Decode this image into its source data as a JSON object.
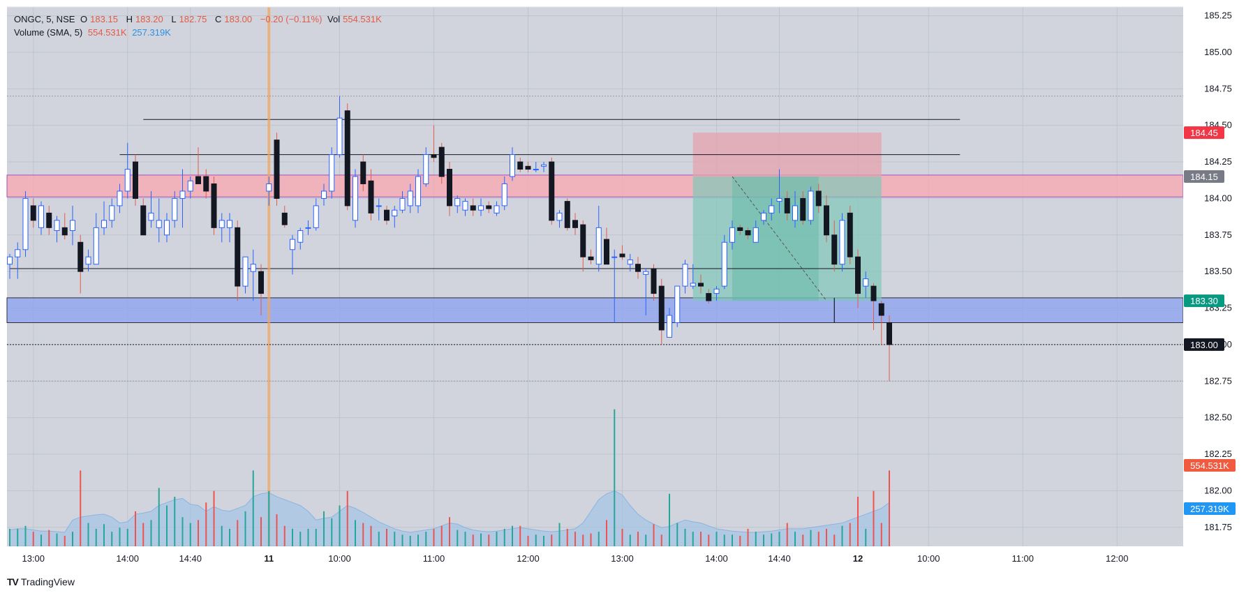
{
  "header": {
    "symbol": "ONGC, 5, NSE",
    "open_label": "O",
    "open": "183.15",
    "high_label": "H",
    "high": "183.20",
    "low_label": "L",
    "low": "182.75",
    "close_label": "C",
    "close": "183.00",
    "change": "−0.20 (−0.11%)",
    "vol_label": "Vol",
    "vol": "554.531K",
    "volume_label": "Volume (SMA, 5)",
    "volume_value": "554.531K",
    "volume_sma": "257.319K"
  },
  "brand": {
    "name": "TradingView",
    "logo": "TV"
  },
  "colors": {
    "bg": "#d1d4dc",
    "up_border": "#2962ff",
    "down_body": "#131722",
    "wick_red": "#e25b47",
    "vol_up": "#26a69a",
    "vol_down": "#ef5350",
    "resistance_zone": "#f7a9b3",
    "support_zone": "#90a4f0",
    "tp_zone": "#7fc7b8",
    "sl_zone": "#e6a3ad",
    "sma_fill": "#9cc1e8"
  },
  "chart_data": {
    "type": "candlestick",
    "symbol": "ONGC",
    "interval": "5",
    "exchange": "NSE",
    "y_axis": {
      "ticks": [
        "185.25",
        "185.00",
        "184.75",
        "184.50",
        "184.25",
        "184.00",
        "183.75",
        "183.50",
        "183.25",
        "183.00",
        "182.75",
        "182.50",
        "182.25",
        "182.00",
        "181.75"
      ],
      "ylim": [
        181.62,
        185.31
      ]
    },
    "x_axis": {
      "ticks": [
        {
          "label": "13:00",
          "i": 3
        },
        {
          "label": "14:00",
          "i": 15
        },
        {
          "label": "14:40",
          "i": 23
        },
        {
          "label": "11",
          "i": 33,
          "bold": true
        },
        {
          "label": "10:00",
          "i": 42
        },
        {
          "label": "11:00",
          "i": 54
        },
        {
          "label": "12:00",
          "i": 66
        },
        {
          "label": "13:00",
          "i": 78
        },
        {
          "label": "14:00",
          "i": 90
        },
        {
          "label": "14:40",
          "i": 98
        },
        {
          "label": "12",
          "i": 108,
          "bold": true
        },
        {
          "label": "10:00",
          "i": 117
        },
        {
          "label": "11:00",
          "i": 129
        },
        {
          "label": "12:00",
          "i": 141
        }
      ]
    },
    "candles": [
      {
        "o": 183.55,
        "h": 183.62,
        "l": 183.45,
        "c": 183.6
      },
      {
        "o": 183.6,
        "h": 183.7,
        "l": 183.45,
        "c": 183.65
      },
      {
        "o": 183.65,
        "h": 184.05,
        "l": 183.6,
        "c": 184.0
      },
      {
        "o": 183.95,
        "h": 184.0,
        "l": 183.8,
        "c": 183.85
      },
      {
        "o": 183.8,
        "h": 183.98,
        "l": 183.75,
        "c": 183.95
      },
      {
        "o": 183.9,
        "h": 183.95,
        "l": 183.75,
        "c": 183.8
      },
      {
        "o": 183.78,
        "h": 183.88,
        "l": 183.7,
        "c": 183.85
      },
      {
        "o": 183.8,
        "h": 183.9,
        "l": 183.72,
        "c": 183.75
      },
      {
        "o": 183.78,
        "h": 183.95,
        "l": 183.68,
        "c": 183.85
      },
      {
        "o": 183.7,
        "h": 183.75,
        "l": 183.35,
        "c": 183.5
      },
      {
        "o": 183.55,
        "h": 183.65,
        "l": 183.5,
        "c": 183.6
      },
      {
        "o": 183.55,
        "h": 183.9,
        "l": 183.55,
        "c": 183.8
      },
      {
        "o": 183.8,
        "h": 183.98,
        "l": 183.75,
        "c": 183.85
      },
      {
        "o": 183.85,
        "h": 184.0,
        "l": 183.8,
        "c": 183.95
      },
      {
        "o": 183.95,
        "h": 184.1,
        "l": 183.9,
        "c": 184.05
      },
      {
        "o": 184.05,
        "h": 184.38,
        "l": 184.0,
        "c": 184.2
      },
      {
        "o": 184.25,
        "h": 184.3,
        "l": 183.95,
        "c": 184.0
      },
      {
        "o": 183.95,
        "h": 184.0,
        "l": 183.75,
        "c": 183.75
      },
      {
        "o": 183.85,
        "h": 184.05,
        "l": 183.8,
        "c": 183.9
      },
      {
        "o": 183.8,
        "h": 184.0,
        "l": 183.7,
        "c": 183.85
      },
      {
        "o": 183.75,
        "h": 183.9,
        "l": 183.7,
        "c": 183.85
      },
      {
        "o": 183.85,
        "h": 184.05,
        "l": 183.8,
        "c": 184.0
      },
      {
        "o": 184.0,
        "h": 184.2,
        "l": 183.8,
        "c": 184.05
      },
      {
        "o": 184.05,
        "h": 184.15,
        "l": 184.0,
        "c": 184.12
      },
      {
        "o": 184.15,
        "h": 184.35,
        "l": 184.1,
        "c": 184.1
      },
      {
        "o": 184.15,
        "h": 184.2,
        "l": 184.0,
        "c": 184.05
      },
      {
        "o": 184.1,
        "h": 184.15,
        "l": 183.75,
        "c": 183.8
      },
      {
        "o": 183.8,
        "h": 183.9,
        "l": 183.7,
        "c": 183.85
      },
      {
        "o": 183.8,
        "h": 183.9,
        "l": 183.7,
        "c": 183.85
      },
      {
        "o": 183.8,
        "h": 183.85,
        "l": 183.3,
        "c": 183.4
      },
      {
        "o": 183.4,
        "h": 183.6,
        "l": 183.35,
        "c": 183.6
      },
      {
        "o": 183.5,
        "h": 183.65,
        "l": 183.3,
        "c": 183.55
      },
      {
        "o": 183.5,
        "h": 183.55,
        "l": 183.2,
        "c": 183.35
      },
      {
        "o": 184.05,
        "h": 184.15,
        "l": 183.95,
        "c": 184.1
      },
      {
        "o": 184.4,
        "h": 184.45,
        "l": 183.95,
        "c": 184.0
      },
      {
        "o": 183.9,
        "h": 183.95,
        "l": 183.8,
        "c": 183.82
      },
      {
        "o": 183.65,
        "h": 183.75,
        "l": 183.48,
        "c": 183.72
      },
      {
        "o": 183.7,
        "h": 183.8,
        "l": 183.65,
        "c": 183.78
      },
      {
        "o": 183.8,
        "h": 183.85,
        "l": 183.75,
        "c": 183.8
      },
      {
        "o": 183.8,
        "h": 184.0,
        "l": 183.78,
        "c": 183.95
      },
      {
        "o": 184.0,
        "h": 184.1,
        "l": 183.95,
        "c": 184.05
      },
      {
        "o": 184.05,
        "h": 184.35,
        "l": 184.0,
        "c": 184.3
      },
      {
        "o": 184.3,
        "h": 184.7,
        "l": 184.28,
        "c": 184.55
      },
      {
        "o": 184.6,
        "h": 184.65,
        "l": 183.92,
        "c": 183.95
      },
      {
        "o": 183.85,
        "h": 184.2,
        "l": 183.8,
        "c": 184.15
      },
      {
        "o": 184.25,
        "h": 184.3,
        "l": 184.05,
        "c": 184.1
      },
      {
        "o": 184.12,
        "h": 184.2,
        "l": 183.85,
        "c": 183.9
      },
      {
        "o": 183.95,
        "h": 184.0,
        "l": 183.85,
        "c": 183.95
      },
      {
        "o": 183.92,
        "h": 183.95,
        "l": 183.82,
        "c": 183.85
      },
      {
        "o": 183.88,
        "h": 183.95,
        "l": 183.8,
        "c": 183.92
      },
      {
        "o": 183.92,
        "h": 184.05,
        "l": 183.9,
        "c": 184.0
      },
      {
        "o": 183.95,
        "h": 184.1,
        "l": 183.9,
        "c": 184.05
      },
      {
        "o": 183.95,
        "h": 184.2,
        "l": 183.9,
        "c": 184.15
      },
      {
        "o": 184.1,
        "h": 184.35,
        "l": 184.08,
        "c": 184.3
      },
      {
        "o": 184.3,
        "h": 184.5,
        "l": 184.25,
        "c": 184.28
      },
      {
        "o": 184.35,
        "h": 184.38,
        "l": 184.1,
        "c": 184.15
      },
      {
        "o": 184.2,
        "h": 184.25,
        "l": 183.88,
        "c": 183.95
      },
      {
        "o": 183.95,
        "h": 184.02,
        "l": 183.9,
        "c": 184.0
      },
      {
        "o": 183.92,
        "h": 184.0,
        "l": 183.88,
        "c": 183.98
      },
      {
        "o": 183.95,
        "h": 184.0,
        "l": 183.88,
        "c": 183.92
      },
      {
        "o": 183.92,
        "h": 184.0,
        "l": 183.88,
        "c": 183.95
      },
      {
        "o": 183.95,
        "h": 183.98,
        "l": 183.9,
        "c": 183.93
      },
      {
        "o": 183.9,
        "h": 183.98,
        "l": 183.88,
        "c": 183.95
      },
      {
        "o": 183.95,
        "h": 184.15,
        "l": 183.92,
        "c": 184.1
      },
      {
        "o": 184.15,
        "h": 184.35,
        "l": 184.12,
        "c": 184.3
      },
      {
        "o": 184.25,
        "h": 184.28,
        "l": 184.18,
        "c": 184.2
      },
      {
        "o": 184.22,
        "h": 184.25,
        "l": 184.18,
        "c": 184.2
      },
      {
        "o": 184.2,
        "h": 184.25,
        "l": 184.18,
        "c": 184.2
      },
      {
        "o": 184.22,
        "h": 184.25,
        "l": 184.18,
        "c": 184.23
      },
      {
        "o": 184.25,
        "h": 184.28,
        "l": 183.82,
        "c": 183.85
      },
      {
        "o": 183.85,
        "h": 183.92,
        "l": 183.8,
        "c": 183.9
      },
      {
        "o": 183.98,
        "h": 184.0,
        "l": 183.78,
        "c": 183.8
      },
      {
        "o": 183.85,
        "h": 183.9,
        "l": 183.75,
        "c": 183.8
      },
      {
        "o": 183.82,
        "h": 183.85,
        "l": 183.5,
        "c": 183.6
      },
      {
        "o": 183.6,
        "h": 183.65,
        "l": 183.55,
        "c": 183.58
      },
      {
        "o": 183.55,
        "h": 183.95,
        "l": 183.5,
        "c": 183.8
      },
      {
        "o": 183.72,
        "h": 183.8,
        "l": 183.55,
        "c": 183.55
      },
      {
        "o": 183.6,
        "h": 183.65,
        "l": 183.15,
        "c": 183.6
      },
      {
        "o": 183.62,
        "h": 183.68,
        "l": 183.58,
        "c": 183.6
      },
      {
        "o": 183.55,
        "h": 183.62,
        "l": 183.5,
        "c": 183.58
      },
      {
        "o": 183.55,
        "h": 183.6,
        "l": 183.45,
        "c": 183.5
      },
      {
        "o": 183.48,
        "h": 183.52,
        "l": 183.2,
        "c": 183.5
      },
      {
        "o": 183.52,
        "h": 183.55,
        "l": 183.3,
        "c": 183.35
      },
      {
        "o": 183.4,
        "h": 183.45,
        "l": 183.0,
        "c": 183.1
      },
      {
        "o": 183.05,
        "h": 183.25,
        "l": 183.05,
        "c": 183.2
      },
      {
        "o": 183.15,
        "h": 183.4,
        "l": 183.12,
        "c": 183.4
      },
      {
        "o": 183.4,
        "h": 183.58,
        "l": 183.35,
        "c": 183.55
      },
      {
        "o": 183.4,
        "h": 183.55,
        "l": 183.38,
        "c": 183.42
      },
      {
        "o": 183.42,
        "h": 183.48,
        "l": 183.35,
        "c": 183.4
      },
      {
        "o": 183.35,
        "h": 183.38,
        "l": 183.28,
        "c": 183.3
      },
      {
        "o": 183.35,
        "h": 183.4,
        "l": 183.3,
        "c": 183.38
      },
      {
        "o": 183.4,
        "h": 183.75,
        "l": 183.38,
        "c": 183.7
      },
      {
        "o": 183.7,
        "h": 183.85,
        "l": 183.65,
        "c": 183.8
      },
      {
        "o": 183.8,
        "h": 183.82,
        "l": 183.75,
        "c": 183.78
      },
      {
        "o": 183.78,
        "h": 183.8,
        "l": 183.72,
        "c": 183.75
      },
      {
        "o": 183.7,
        "h": 183.85,
        "l": 183.7,
        "c": 183.8
      },
      {
        "o": 183.85,
        "h": 183.92,
        "l": 183.82,
        "c": 183.9
      },
      {
        "o": 183.9,
        "h": 184.0,
        "l": 183.85,
        "c": 183.95
      },
      {
        "o": 183.98,
        "h": 184.2,
        "l": 183.9,
        "c": 184.0
      },
      {
        "o": 184.0,
        "h": 184.05,
        "l": 183.85,
        "c": 183.9
      },
      {
        "o": 183.85,
        "h": 184.05,
        "l": 183.8,
        "c": 183.95
      },
      {
        "o": 184.0,
        "h": 184.05,
        "l": 183.82,
        "c": 183.85
      },
      {
        "o": 183.85,
        "h": 184.08,
        "l": 183.82,
        "c": 184.05
      },
      {
        "o": 184.05,
        "h": 184.1,
        "l": 183.9,
        "c": 183.95
      },
      {
        "o": 183.95,
        "h": 184.02,
        "l": 183.7,
        "c": 183.75
      },
      {
        "o": 183.75,
        "h": 183.85,
        "l": 183.5,
        "c": 183.55
      },
      {
        "o": 183.55,
        "h": 183.9,
        "l": 183.5,
        "c": 183.85
      },
      {
        "o": 183.9,
        "h": 183.95,
        "l": 183.55,
        "c": 183.6
      },
      {
        "o": 183.6,
        "h": 183.65,
        "l": 183.25,
        "c": 183.35
      },
      {
        "o": 183.4,
        "h": 183.5,
        "l": 183.32,
        "c": 183.45
      },
      {
        "o": 183.4,
        "h": 183.42,
        "l": 183.1,
        "c": 183.3
      },
      {
        "o": 183.28,
        "h": 183.3,
        "l": 183.0,
        "c": 183.2
      },
      {
        "o": 183.15,
        "h": 183.2,
        "l": 182.75,
        "c": 183.0
      }
    ],
    "volume": [
      30,
      30,
      35,
      25,
      20,
      28,
      22,
      18,
      25,
      130,
      40,
      30,
      38,
      25,
      32,
      30,
      60,
      40,
      45,
      100,
      70,
      85,
      50,
      40,
      45,
      75,
      95,
      35,
      30,
      45,
      60,
      130,
      50,
      95,
      55,
      35,
      30,
      25,
      30,
      30,
      60,
      48,
      70,
      95,
      45,
      40,
      35,
      25,
      30,
      25,
      20,
      18,
      20,
      25,
      30,
      35,
      50,
      28,
      25,
      20,
      22,
      20,
      25,
      30,
      35,
      35,
      18,
      20,
      18,
      20,
      40,
      30,
      25,
      20,
      22,
      25,
      45,
      235,
      30,
      20,
      25,
      20,
      38,
      20,
      90,
      40,
      30,
      25,
      25,
      20,
      25,
      20,
      20,
      18,
      30,
      25,
      20,
      22,
      25,
      40,
      25,
      20,
      28,
      25,
      30,
      20,
      35,
      40,
      85,
      30,
      95,
      40,
      130
    ],
    "sma_volume": [
      28,
      30,
      30,
      28,
      26,
      26,
      25,
      24,
      45,
      50,
      52,
      54,
      55,
      50,
      40,
      42,
      55,
      57,
      60,
      70,
      75,
      80,
      82,
      72,
      70,
      60,
      68,
      62,
      60,
      65,
      70,
      85,
      90,
      92,
      85,
      80,
      75,
      70,
      60,
      45,
      48,
      50,
      60,
      70,
      65,
      58,
      50,
      42,
      36,
      30,
      26,
      24,
      26,
      28,
      30,
      35,
      40,
      38,
      32,
      28,
      26,
      25,
      26,
      28,
      30,
      32,
      30,
      28,
      26,
      25,
      26,
      28,
      30,
      40,
      60,
      80,
      90,
      95,
      88,
      70,
      55,
      45,
      38,
      32,
      34,
      40,
      45,
      42,
      40,
      35,
      30,
      28,
      26,
      25,
      24,
      24,
      25,
      26,
      28,
      30,
      30,
      30,
      32,
      34,
      36,
      38,
      40,
      45,
      50,
      55,
      60,
      65,
      75
    ],
    "horizontal_lines": [
      {
        "y": 184.54,
        "from": 17,
        "to": 121
      },
      {
        "y": 184.3,
        "from": 14,
        "to": 121
      },
      {
        "y": 183.52,
        "from": 0,
        "to": 108
      }
    ],
    "zones": [
      {
        "name": "resistance",
        "y1": 184.16,
        "y2": 184.01,
        "from": 0,
        "to": 150
      },
      {
        "name": "support",
        "y1": 183.32,
        "y2": 183.15,
        "from": 0,
        "to": 150
      }
    ],
    "position": {
      "entry": 184.15,
      "stop": 184.45,
      "target": 183.3,
      "from": 87,
      "to": 111,
      "entry_index": 92
    },
    "price_labels": [
      {
        "value": "184.45",
        "type": "stop"
      },
      {
        "value": "184.15",
        "type": "entry"
      },
      {
        "value": "183.30",
        "type": "target"
      },
      {
        "value": "183.00",
        "type": "last"
      }
    ],
    "volume_labels": [
      {
        "value": "554.531K",
        "type": "volume"
      },
      {
        "value": "257.319K",
        "type": "sma"
      }
    ],
    "orange_marker_index": 33
  }
}
